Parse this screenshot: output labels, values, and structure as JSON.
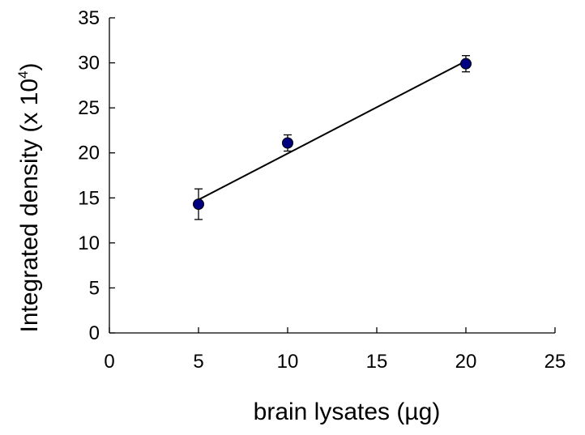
{
  "chart_data": {
    "type": "scatter",
    "title": "",
    "xlabel": "brain lysates (µg)",
    "ylabel": {
      "prefix": "Integrated density (x 10",
      "exponent": "4",
      "suffix": ")"
    },
    "xlim": [
      0,
      25
    ],
    "ylim": [
      0,
      35
    ],
    "x_ticks": [
      0,
      5,
      10,
      15,
      20,
      25
    ],
    "y_ticks": [
      0,
      5,
      10,
      15,
      20,
      25,
      30,
      35
    ],
    "x_tick_labels": [
      "0",
      "5",
      "10",
      "15",
      "20",
      "25"
    ],
    "y_tick_labels": [
      "0",
      "5",
      "10",
      "15",
      "20",
      "25",
      "30",
      "35"
    ],
    "grid": false,
    "legend": "none",
    "series": [
      {
        "points": [
          {
            "x": 5,
            "y": 14.3,
            "error": 1.7
          },
          {
            "x": 10,
            "y": 21.1,
            "error": 0.9
          },
          {
            "x": 20,
            "y": 29.9,
            "error": 0.9
          }
        ],
        "marker_color": "#000080"
      }
    ],
    "trendline": {
      "type": "linear",
      "x_range": [
        5,
        20
      ],
      "y_range": [
        14.8,
        30.2
      ],
      "color": "#000000"
    }
  }
}
